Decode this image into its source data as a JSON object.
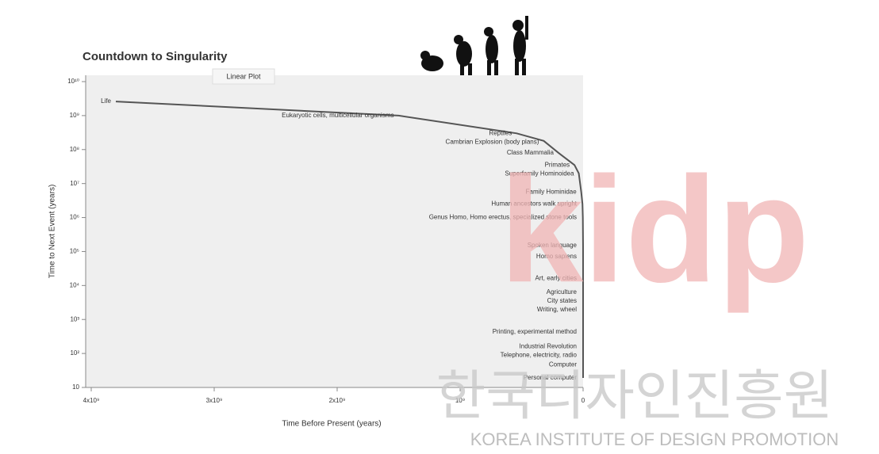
{
  "chart_data": {
    "type": "line",
    "title": "Countdown to Singularity",
    "subtitle": "Linear Plot",
    "xlabel": "Time Before Present (years)",
    "ylabel": "Time to Next Event (years)",
    "log_y": true,
    "color": "#555555",
    "xlim": [
      4000000000,
      0
    ],
    "xticks": [
      {
        "value": 4000000000,
        "label": "4x10⁹"
      },
      {
        "value": 3000000000,
        "label": "3x10⁹"
      },
      {
        "value": 2000000000,
        "label": "2x10⁹"
      },
      {
        "value": 1000000000,
        "label": "10⁹"
      },
      0
    ],
    "ylim": [
      10,
      10000000000
    ],
    "yticks": [
      {
        "value": 10000000000,
        "label": "10¹⁰"
      },
      {
        "value": 1000000000,
        "label": "10⁹"
      },
      {
        "value": 100000000,
        "label": "10⁸"
      },
      {
        "value": 10000000,
        "label": "10⁷"
      },
      {
        "value": 1000000,
        "label": "10⁶"
      },
      {
        "value": 100000,
        "label": "10⁵"
      },
      {
        "value": 10000,
        "label": "10⁴"
      },
      {
        "value": 1000,
        "label": "10³"
      },
      {
        "value": 100,
        "label": "10²"
      },
      10
    ],
    "point_labels": [
      "Life",
      "Eukaryotic cells, multicellular organisms",
      "Reptiles",
      "Cambrian Explosion (body plans)",
      "Class Mammalia",
      "Primates",
      "Superfamily Hominoidea",
      "Family Hominidae",
      "Human ancestors walk upright",
      "Genus Homo, Homo erectus, specialized stone tools",
      "Spoken language",
      "Homo sapiens",
      "Art, early cities",
      "Agriculture",
      "City states",
      "Writing, wheel",
      "Printing, experimental method",
      "Industrial Revolution",
      "Telephone, electricity, radio",
      "Computer",
      "Personal computer"
    ],
    "x": [
      3800000000,
      1500000000,
      540000000,
      320000000,
      200000000,
      70000000,
      35000000,
      15000000,
      5000000,
      2000000,
      200000,
      120000,
      40000,
      11000,
      5000,
      4000,
      550,
      225,
      100,
      60,
      25
    ],
    "values": [
      2600000000,
      1000000000,
      300000000,
      180000000,
      80000000,
      35000000,
      20000000,
      5600000,
      2500000,
      1000000,
      150000,
      70000,
      16000,
      6300,
      3500,
      2000,
      430,
      160,
      90,
      47,
      19
    ]
  },
  "watermark": {
    "logo": "kidp",
    "korean": "한국디자인진흥원",
    "english": "KOREA INSTITUTE OF DESIGN PROMOTION"
  }
}
